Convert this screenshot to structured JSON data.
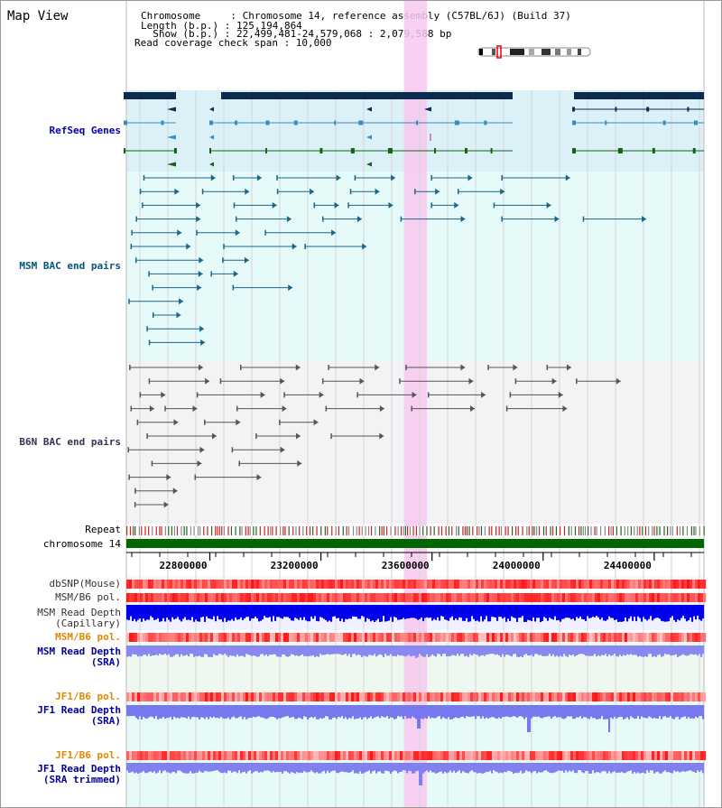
{
  "title": "Map View",
  "header": {
    "lines": [
      "Chromosome     : Chromosome 14, reference assembly (C57BL/6J) (Build 37)",
      "Length (b.p.) : 125,194,864",
      "  Show (b.p.) : 22,499,481-24,579,068 : 2,079,588 bp",
      "Read coverage check span : 10,000"
    ]
  },
  "view": {
    "start": 22499481,
    "end": 24579068,
    "highlight_start": 23499000,
    "highlight_end": 23582000
  },
  "tracks": {
    "refseq": "RefSeq Genes",
    "msm_bac": "MSM BAC end pairs",
    "b6n_bac": "B6N BAC end pairs",
    "repeat": "Repeat",
    "chromosome": "chromosome 14",
    "dbsnp": "dbSNP(Mouse)",
    "msm_pol": "MSM/B6 pol.",
    "msm_cap_line1": "MSM Read Depth",
    "msm_cap_line2": "(Capillary)",
    "msm_pol2": "MSM/B6 pol.",
    "msm_sra_line1": "MSM Read Depth",
    "msm_sra_line2": "(SRA)",
    "jf1_pol": "JF1/B6 pol.",
    "jf1_sra_line1": "JF1 Read Depth",
    "jf1_sra_line2": "(SRA)",
    "jf1_pol2": "JF1/B6 pol.",
    "jf1_trim_line1": "JF1 Read Depth",
    "jf1_trim_line2": "(SRA trimmed)"
  },
  "axis": {
    "ticks": [
      "22800000",
      "23200000",
      "23600000",
      "24000000",
      "24400000"
    ]
  },
  "colors": {
    "refseq_bg": "#dcf0f8",
    "refseq_label": "#0000aa",
    "gene_dark": "#0d2a50",
    "gene_mid": "#3a8bbf",
    "gene_green": "#116611",
    "msm_bg": "#e6fafa",
    "msm_label": "#005577",
    "msm_feature": "#1a6688",
    "b6n_bg": "#f3f3f6",
    "b6n_label": "#333355",
    "b6n_feature": "#555555",
    "chrom": "#006600",
    "pol_label": "#e08800",
    "depth_label": "#000099",
    "depth_dark": "#0000ee",
    "depth_light": "#7777ee",
    "highlight": "#f7c8ee"
  }
}
